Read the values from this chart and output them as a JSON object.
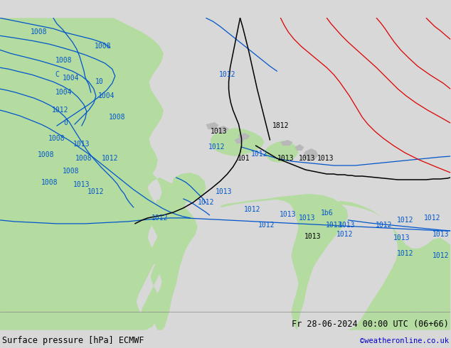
{
  "title_left": "Surface pressure [hPa] ECMWF",
  "title_right": "Fr 28-06-2024 00:00 UTC (06+66)",
  "copyright": "©weatheronline.co.uk",
  "bg_color": "#d8d8d8",
  "map_bg": "#e0e0e0",
  "ocean_color": "#e8e8e8",
  "green_color": "#b4dba0",
  "gray_color": "#b8b8b8",
  "blue": "#0055cc",
  "black": "#000000",
  "red": "#dd0000",
  "lw_blue": 0.9,
  "lw_black": 1.1,
  "lw_red": 0.9
}
